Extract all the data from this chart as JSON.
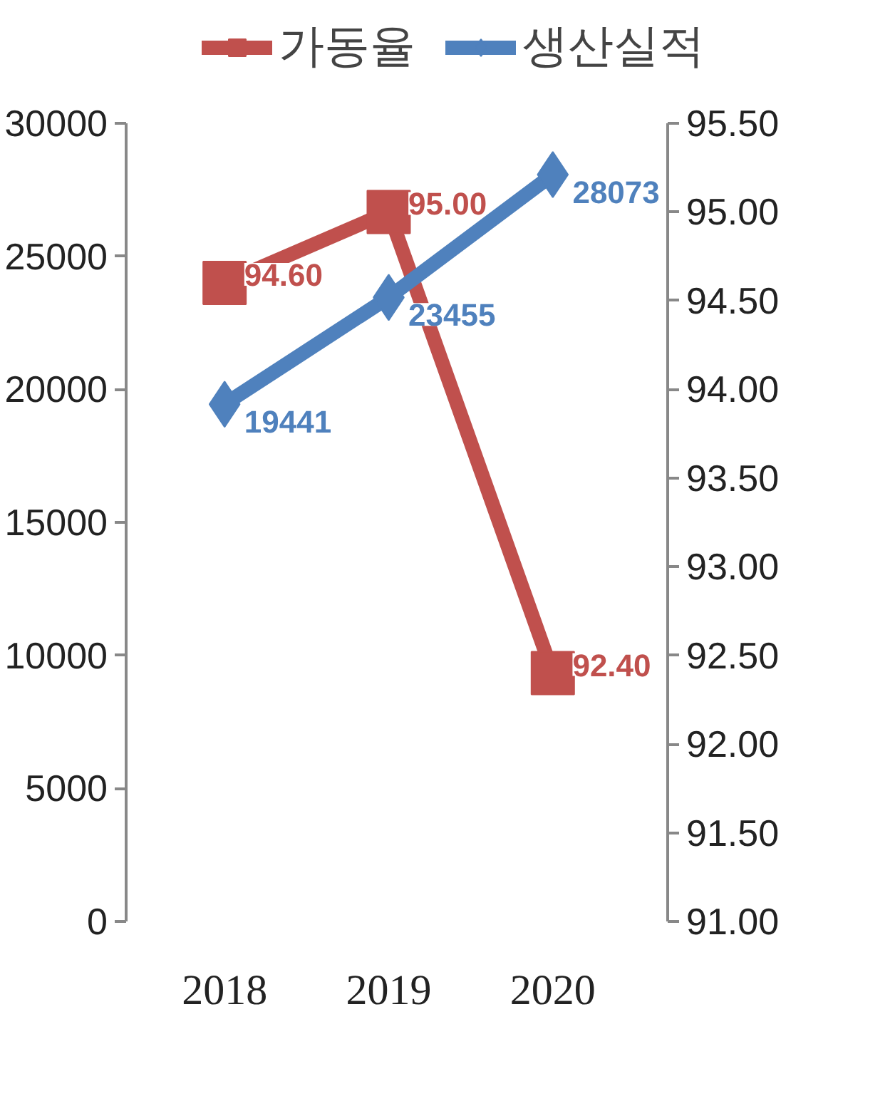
{
  "chart_data": {
    "type": "line",
    "categories": [
      "2018",
      "2019",
      "2020"
    ],
    "ylim": [
      0,
      30000
    ],
    "yticks": [
      0,
      5000,
      10000,
      15000,
      20000,
      25000,
      30000
    ],
    "y2lim": [
      91,
      95.5
    ],
    "y2ticks": [
      {
        "value": 91,
        "label": "91.00"
      },
      {
        "value": 91.5,
        "label": "91.50"
      },
      {
        "value": 92,
        "label": "92.00"
      },
      {
        "value": 92.5,
        "label": "92.50"
      },
      {
        "value": 93,
        "label": "93.00"
      },
      {
        "value": 93.5,
        "label": "93.50"
      },
      {
        "value": 94,
        "label": "94.00"
      },
      {
        "value": 94.5,
        "label": "94.50"
      },
      {
        "value": 95,
        "label": "95.00"
      },
      {
        "value": 95.5,
        "label": "95.50"
      }
    ],
    "series": [
      {
        "name": "가동율",
        "color": "#c0504d",
        "axis": "y2",
        "marker": "square",
        "values": [
          94.6,
          95.0,
          92.4
        ],
        "value_labels": [
          "94.60",
          "95.00",
          "92.40"
        ]
      },
      {
        "name": "생산실적",
        "color": "#4f81bd",
        "axis": "y",
        "marker": "diamond",
        "values": [
          19441,
          23455,
          28073
        ],
        "value_labels": [
          "19441",
          "23455",
          "28073"
        ]
      }
    ],
    "grid": false,
    "legend": "top",
    "line_style": "solid"
  }
}
